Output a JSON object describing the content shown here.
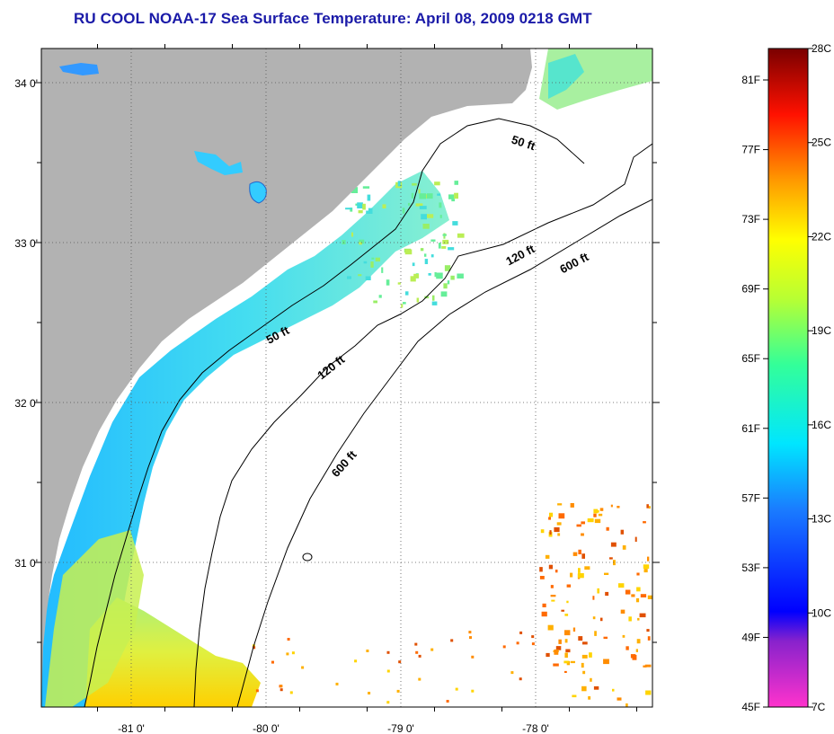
{
  "title": "RU COOL  NOAA-17  Sea Surface Temperature:  April 08, 2009 0218 GMT",
  "map": {
    "lon_labels": [
      {
        "lon": -81,
        "text": "-81 0'"
      },
      {
        "lon": -80,
        "text": "-80 0'"
      },
      {
        "lon": -79,
        "text": "-79 0'"
      },
      {
        "lon": -78,
        "text": "-78 0'"
      }
    ],
    "lat_labels": [
      {
        "lat": 34,
        "text": "34 0'"
      },
      {
        "lat": 33,
        "text": "33 0'"
      },
      {
        "lat": 32,
        "text": "32 0'"
      },
      {
        "lat": 31,
        "text": "31 0'"
      }
    ],
    "contour_labels": [
      {
        "text": "50 ft",
        "lon": -78.1,
        "lat": 33.6,
        "angle": 18
      },
      {
        "text": "120 ft",
        "lon": -78.1,
        "lat": 32.9,
        "angle": -28
      },
      {
        "text": "600 ft",
        "lon": -77.7,
        "lat": 32.85,
        "angle": -28
      },
      {
        "text": "50 ft",
        "lon": -79.9,
        "lat": 32.4,
        "angle": -28
      },
      {
        "text": "120 ft",
        "lon": -79.5,
        "lat": 32.2,
        "angle": -38
      },
      {
        "text": "600 ft",
        "lon": -79.4,
        "lat": 31.6,
        "angle": -48
      }
    ],
    "colors": {
      "land": "#b2b2b2",
      "ocean": "#ffffff",
      "title": "#1a1aa8"
    }
  },
  "colorbar": {
    "f_labels": [
      "81F",
      "77F",
      "73F",
      "69F",
      "65F",
      "61F",
      "57F",
      "53F",
      "49F",
      "45F"
    ],
    "c_labels": [
      "28C",
      "25C",
      "22C",
      "19C",
      "16C",
      "13C",
      "10C",
      "7C"
    ],
    "range_c": [
      7,
      28
    ]
  }
}
